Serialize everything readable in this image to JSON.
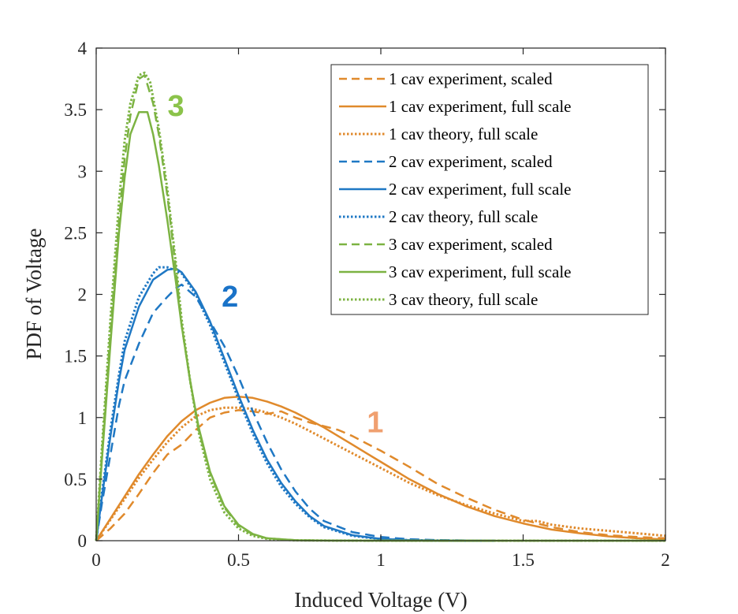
{
  "chart_data": {
    "type": "line",
    "title": "",
    "xlabel": "Induced Voltage (V)",
    "ylabel": "PDF of Voltage",
    "xlim": [
      0,
      2
    ],
    "ylim": [
      0,
      4
    ],
    "xticks": [
      0,
      0.5,
      1,
      1.5,
      2
    ],
    "xtick_labels": [
      "0",
      "0.5",
      "1",
      "1.5",
      "2"
    ],
    "yticks": [
      0,
      0.5,
      1,
      1.5,
      2,
      2.5,
      3,
      3.5,
      4
    ],
    "ytick_labels": [
      "0",
      "0.5",
      "1",
      "1.5",
      "2",
      "2.5",
      "3",
      "3.5",
      "4"
    ],
    "grid": false,
    "legend_position": "top-right",
    "colors": {
      "orange": "#e08a2c",
      "blue": "#1f78c4",
      "green": "#7cb342"
    },
    "annotations": [
      {
        "text": "1",
        "x": 0.98,
        "y": 0.88,
        "color": "#f0a070"
      },
      {
        "text": "2",
        "x": 0.47,
        "y": 1.9,
        "color": "#1a73c8"
      },
      {
        "text": "3",
        "x": 0.28,
        "y": 3.45,
        "color": "#8bc34a"
      }
    ],
    "series": [
      {
        "name": "1 cav experiment, scaled",
        "color": "#e08a2c",
        "style": "dashed",
        "x": [
          0,
          0.05,
          0.1,
          0.15,
          0.2,
          0.25,
          0.3,
          0.35,
          0.4,
          0.45,
          0.5,
          0.55,
          0.6,
          0.65,
          0.7,
          0.75,
          0.8,
          0.85,
          0.9,
          0.95,
          1.0,
          1.1,
          1.2,
          1.3,
          1.4,
          1.5,
          1.6,
          1.7,
          1.8,
          1.9,
          2.0
        ],
        "y": [
          0,
          0.1,
          0.22,
          0.38,
          0.55,
          0.7,
          0.78,
          0.9,
          1.0,
          1.04,
          1.06,
          1.05,
          1.03,
          1.05,
          1.0,
          0.96,
          0.93,
          0.9,
          0.85,
          0.79,
          0.73,
          0.6,
          0.46,
          0.35,
          0.25,
          0.17,
          0.11,
          0.07,
          0.045,
          0.03,
          0.02
        ]
      },
      {
        "name": "1 cav experiment, full scale",
        "color": "#e08a2c",
        "style": "solid",
        "x": [
          0,
          0.05,
          0.1,
          0.15,
          0.2,
          0.25,
          0.3,
          0.35,
          0.4,
          0.45,
          0.5,
          0.55,
          0.6,
          0.65,
          0.7,
          0.75,
          0.8,
          0.85,
          0.9,
          0.95,
          1.0,
          1.1,
          1.2,
          1.3,
          1.4,
          1.5,
          1.6,
          1.7,
          1.8,
          1.9,
          2.0
        ],
        "y": [
          0,
          0.18,
          0.36,
          0.54,
          0.7,
          0.85,
          0.97,
          1.06,
          1.12,
          1.16,
          1.17,
          1.16,
          1.13,
          1.09,
          1.04,
          0.98,
          0.92,
          0.85,
          0.78,
          0.71,
          0.64,
          0.5,
          0.38,
          0.28,
          0.2,
          0.14,
          0.09,
          0.06,
          0.035,
          0.02,
          0.01
        ]
      },
      {
        "name": "1 cav theory, full scale",
        "color": "#e08a2c",
        "style": "dotted",
        "x": [
          0,
          0.05,
          0.1,
          0.15,
          0.2,
          0.25,
          0.3,
          0.35,
          0.4,
          0.45,
          0.5,
          0.55,
          0.6,
          0.65,
          0.7,
          0.75,
          0.8,
          0.85,
          0.9,
          0.95,
          1.0,
          1.1,
          1.2,
          1.3,
          1.4,
          1.5,
          1.55,
          1.6,
          1.7,
          1.8,
          1.9,
          2.0
        ],
        "y": [
          0,
          0.17,
          0.34,
          0.51,
          0.66,
          0.8,
          0.92,
          1.01,
          1.06,
          1.08,
          1.08,
          1.07,
          1.04,
          1.0,
          0.95,
          0.89,
          0.83,
          0.77,
          0.71,
          0.65,
          0.59,
          0.47,
          0.37,
          0.29,
          0.22,
          0.16,
          0.16,
          0.13,
          0.1,
          0.08,
          0.06,
          0.04
        ]
      },
      {
        "name": "2 cav experiment, scaled",
        "color": "#1f78c4",
        "style": "dashed",
        "x": [
          0,
          0.02,
          0.05,
          0.08,
          0.1,
          0.15,
          0.2,
          0.25,
          0.28,
          0.3,
          0.35,
          0.4,
          0.45,
          0.5,
          0.55,
          0.6,
          0.65,
          0.7,
          0.75,
          0.8,
          0.9,
          1.0,
          1.1,
          1.2,
          1.3,
          1.4
        ],
        "y": [
          0,
          0.3,
          0.7,
          1.1,
          1.3,
          1.6,
          1.85,
          1.98,
          2.05,
          2.08,
          1.98,
          1.78,
          1.58,
          1.33,
          1.05,
          0.8,
          0.58,
          0.4,
          0.26,
          0.16,
          0.07,
          0.03,
          0.012,
          0.005,
          0.002,
          0.0
        ]
      },
      {
        "name": "2 cav experiment, full scale",
        "color": "#1f78c4",
        "style": "solid",
        "x": [
          0,
          0.02,
          0.05,
          0.08,
          0.1,
          0.15,
          0.2,
          0.25,
          0.28,
          0.3,
          0.35,
          0.4,
          0.45,
          0.5,
          0.55,
          0.6,
          0.65,
          0.7,
          0.75,
          0.8,
          0.9,
          1.0,
          1.1,
          1.2,
          1.3,
          1.4
        ],
        "y": [
          0,
          0.35,
          0.85,
          1.3,
          1.55,
          1.9,
          2.12,
          2.2,
          2.21,
          2.18,
          2.02,
          1.78,
          1.48,
          1.18,
          0.9,
          0.66,
          0.47,
          0.32,
          0.2,
          0.12,
          0.045,
          0.015,
          0.005,
          0.002,
          0.001,
          0.0
        ]
      },
      {
        "name": "2 cav theory, full scale",
        "color": "#1f78c4",
        "style": "dotted",
        "x": [
          0,
          0.02,
          0.05,
          0.08,
          0.1,
          0.15,
          0.2,
          0.22,
          0.25,
          0.3,
          0.35,
          0.4,
          0.45,
          0.5,
          0.55,
          0.6,
          0.65,
          0.7,
          0.75,
          0.8,
          0.9,
          1.0,
          1.1,
          1.2,
          1.3,
          1.4
        ],
        "y": [
          0,
          0.38,
          0.9,
          1.35,
          1.62,
          1.98,
          2.17,
          2.22,
          2.22,
          2.17,
          2.0,
          1.75,
          1.45,
          1.15,
          0.87,
          0.63,
          0.44,
          0.3,
          0.19,
          0.11,
          0.04,
          0.013,
          0.004,
          0.001,
          0.0,
          0.0
        ]
      },
      {
        "name": "3 cav experiment, scaled",
        "color": "#7cb342",
        "style": "dashed",
        "x": [
          0,
          0.02,
          0.05,
          0.08,
          0.1,
          0.12,
          0.15,
          0.17,
          0.2,
          0.22,
          0.25,
          0.28,
          0.3,
          0.33,
          0.36,
          0.4,
          0.45,
          0.5,
          0.55,
          0.6,
          0.7,
          0.8,
          1.0,
          1.5,
          2.0
        ],
        "y": [
          0,
          0.7,
          1.7,
          2.6,
          3.1,
          3.45,
          3.75,
          3.78,
          3.55,
          3.3,
          2.8,
          2.2,
          1.75,
          1.3,
          0.9,
          0.55,
          0.27,
          0.12,
          0.05,
          0.02,
          0.004,
          0.001,
          0.0,
          0.0,
          0.0
        ]
      },
      {
        "name": "3 cav experiment, full scale",
        "color": "#7cb342",
        "style": "solid",
        "x": [
          0,
          0.02,
          0.05,
          0.08,
          0.1,
          0.12,
          0.15,
          0.18,
          0.2,
          0.22,
          0.25,
          0.28,
          0.3,
          0.33,
          0.36,
          0.4,
          0.45,
          0.5,
          0.55,
          0.6,
          0.7,
          0.8,
          1.0,
          1.5,
          2.0
        ],
        "y": [
          0,
          0.65,
          1.6,
          2.5,
          2.95,
          3.3,
          3.48,
          3.48,
          3.3,
          3.05,
          2.6,
          2.1,
          1.75,
          1.3,
          0.92,
          0.56,
          0.28,
          0.13,
          0.055,
          0.02,
          0.004,
          0.001,
          0.0,
          0.0,
          0.0
        ]
      },
      {
        "name": "3 cav theory, full scale",
        "color": "#7cb342",
        "style": "dotted",
        "x": [
          0,
          0.02,
          0.05,
          0.08,
          0.1,
          0.12,
          0.15,
          0.17,
          0.19,
          0.22,
          0.25,
          0.28,
          0.3,
          0.33,
          0.36,
          0.4,
          0.45,
          0.5,
          0.55,
          0.6,
          0.7,
          0.8,
          1.0,
          1.5,
          2.0
        ],
        "y": [
          0,
          0.75,
          1.8,
          2.75,
          3.25,
          3.55,
          3.78,
          3.8,
          3.72,
          3.35,
          2.85,
          2.25,
          1.8,
          1.3,
          0.88,
          0.5,
          0.23,
          0.1,
          0.04,
          0.015,
          0.003,
          0.001,
          0.0,
          0.0,
          0.0
        ]
      }
    ]
  }
}
